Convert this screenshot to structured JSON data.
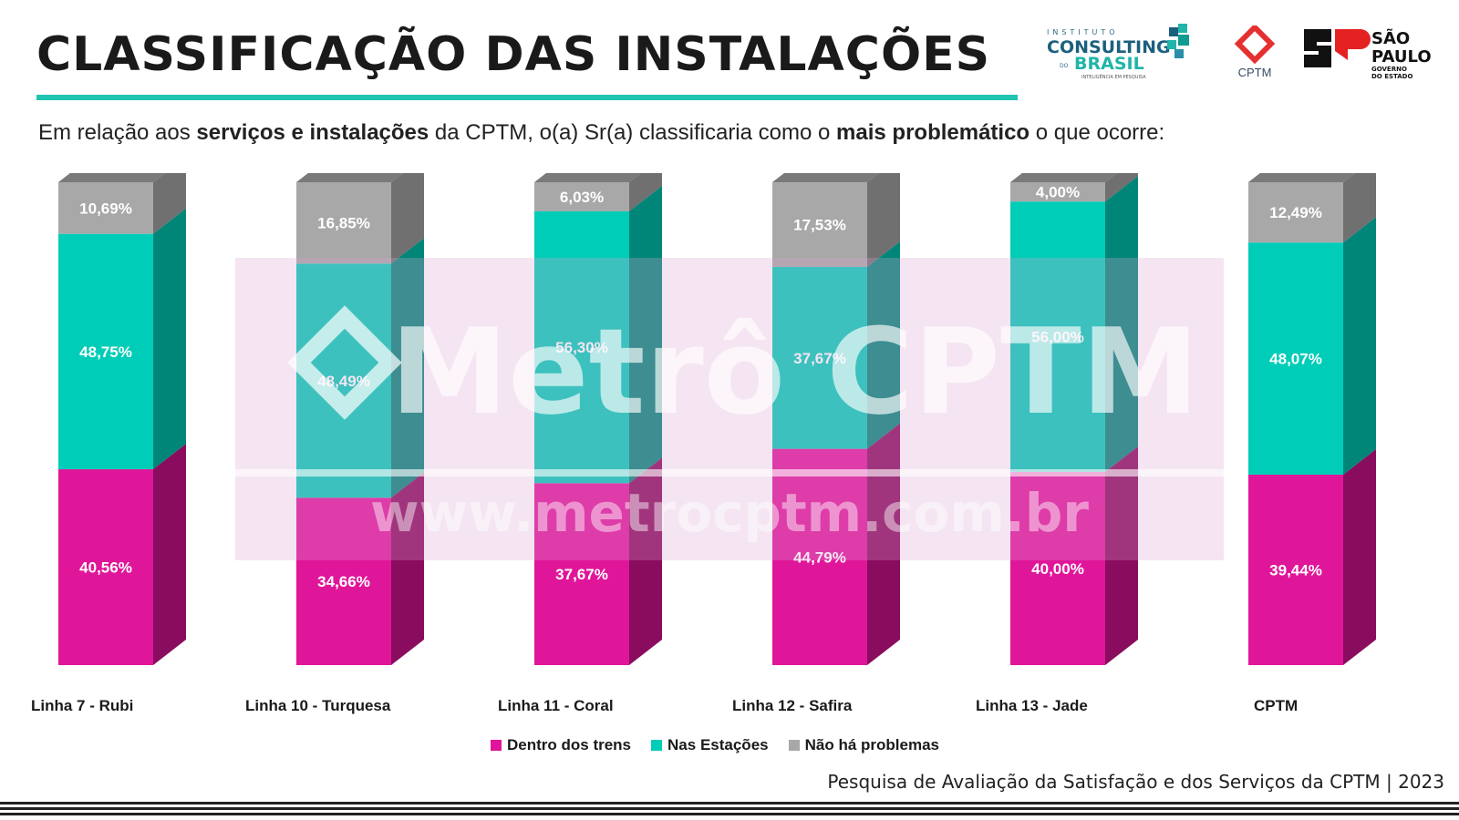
{
  "header": {
    "title": "CLASSIFICAÇÃO DAS INSTALAÇÕES",
    "subtitle_parts": [
      "Em relação aos ",
      "serviços e instalações",
      " da CPTM, o(a) Sr(a) classificaria como o ",
      "mais problemático",
      " o que ocorre:"
    ]
  },
  "logos": {
    "consulting": {
      "line1": "INSTITUTO",
      "line2": "CONSULTING",
      "line3": "DO",
      "line4": "BRASIL",
      "line5": "INTELIGÊNCIA EM PESQUISA"
    },
    "cptm": "CPTM",
    "sp": {
      "line1": "SÃO",
      "line2": "PAULO",
      "line3": "GOVERNO",
      "line4": "DO ESTADO"
    }
  },
  "watermark": {
    "line1": "Metrô CPTM",
    "line2": "www.metrocptm.com.br"
  },
  "colors": {
    "dentro": "#e0169a",
    "dentro_side": "#8a0c5e",
    "estacoes": "#00cdb8",
    "estacoes_side": "#008579",
    "nao": "#a8a8a8",
    "nao_side": "#707070",
    "top": "#7a7a7a",
    "accent": "#1fc3b0"
  },
  "chart_data": {
    "type": "bar",
    "stacked": true,
    "categories": [
      "Linha 7 - Rubi",
      "Linha 10 - Turquesa",
      "Linha 11 - Coral",
      "Linha 12 - Safira",
      "Linha 13 - Jade",
      "CPTM"
    ],
    "series": [
      {
        "name": "Dentro dos trens",
        "values": [
          40.56,
          34.66,
          37.67,
          44.79,
          40.0,
          39.44
        ],
        "labels": [
          "40,56%",
          "34,66%",
          "37,67%",
          "44,79%",
          "40,00%",
          "39,44%"
        ]
      },
      {
        "name": "Nas Estações",
        "values": [
          48.75,
          48.49,
          56.3,
          37.67,
          56.0,
          48.07
        ],
        "labels": [
          "48,75%",
          "48,49%",
          "56,30%",
          "37,67%",
          "56,00%",
          "48,07%"
        ]
      },
      {
        "name": "Não há problemas",
        "values": [
          10.69,
          16.85,
          6.03,
          17.53,
          4.0,
          12.49
        ],
        "labels": [
          "10,69%",
          "16,85%",
          "6,03%",
          "17,53%",
          "4,00%",
          "12,49%"
        ]
      }
    ],
    "ylim": [
      0,
      100
    ],
    "legend_position": "bottom"
  },
  "legend": [
    "Dentro dos trens",
    "Nas Estações",
    "Não há problemas"
  ],
  "footer": {
    "source": "Pesquisa de Avaliação da Satisfação e dos Serviços da CPTM | 2023"
  }
}
